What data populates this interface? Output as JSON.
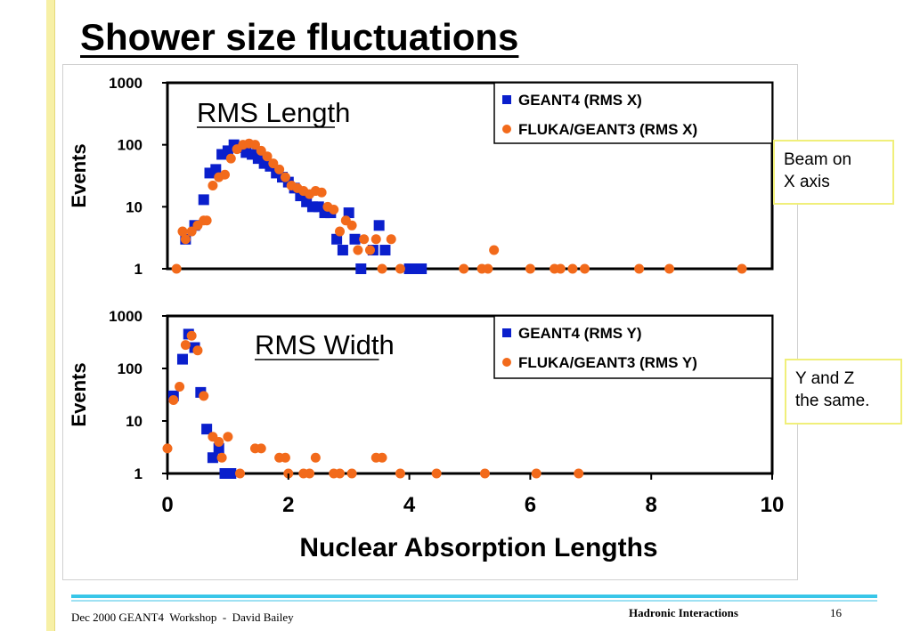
{
  "slide": {
    "title": "Shower size fluctuations",
    "footer_left": "Dec 2000 GEANT4  Workshop  -  David Bailey",
    "footer_center": "Hadronic Interactions",
    "page_number": "16"
  },
  "notes": {
    "beam_axis": "Beam on\nX axis",
    "same": "Y and Z\nthe same."
  },
  "colors": {
    "geant4": "#0a1fcc",
    "fluka": "#f26a1b",
    "note_border": "#f0ef7a",
    "footer_line": "#38c6e8"
  },
  "shared_xlabel": "Nuclear Absorption Lengths",
  "chart_data": [
    {
      "type": "scatter",
      "title": "RMS Length",
      "xlabel": "Nuclear Absorption Lengths",
      "ylabel": "Events",
      "xlim": [
        0,
        10
      ],
      "ylim": [
        1,
        1000
      ],
      "y_scale": "log",
      "y_ticks": [
        "1",
        "10",
        "100",
        "1000"
      ],
      "x_ticks": [
        "0",
        "2",
        "4",
        "6",
        "8",
        "10"
      ],
      "legend_position": "top-right",
      "series": [
        {
          "name": "GEANT4 (RMS X)",
          "marker": "square",
          "color": "#0a1fcc",
          "points": [
            [
              0.3,
              3
            ],
            [
              0.45,
              5
            ],
            [
              0.6,
              13
            ],
            [
              0.7,
              35
            ],
            [
              0.8,
              40
            ],
            [
              0.9,
              70
            ],
            [
              1.0,
              80
            ],
            [
              1.1,
              100
            ],
            [
              1.2,
              90
            ],
            [
              1.3,
              75
            ],
            [
              1.4,
              70
            ],
            [
              1.5,
              60
            ],
            [
              1.6,
              50
            ],
            [
              1.7,
              45
            ],
            [
              1.8,
              35
            ],
            [
              1.9,
              30
            ],
            [
              2.0,
              25
            ],
            [
              2.1,
              20
            ],
            [
              2.2,
              15
            ],
            [
              2.3,
              12
            ],
            [
              2.4,
              10
            ],
            [
              2.5,
              10
            ],
            [
              2.6,
              8
            ],
            [
              2.7,
              8
            ],
            [
              2.8,
              3
            ],
            [
              2.9,
              2
            ],
            [
              3.0,
              8
            ],
            [
              3.1,
              3
            ],
            [
              3.2,
              1
            ],
            [
              3.4,
              2
            ],
            [
              3.5,
              5
            ],
            [
              3.6,
              2
            ],
            [
              4.0,
              1
            ],
            [
              4.1,
              1
            ],
            [
              4.2,
              1
            ]
          ]
        },
        {
          "name": "FLUKA/GEANT3 (RMS X)",
          "marker": "circle",
          "color": "#f26a1b",
          "points": [
            [
              0.15,
              1
            ],
            [
              0.25,
              4
            ],
            [
              0.3,
              3
            ],
            [
              0.4,
              4
            ],
            [
              0.5,
              5
            ],
            [
              0.6,
              6
            ],
            [
              0.65,
              6
            ],
            [
              0.75,
              22
            ],
            [
              0.85,
              30
            ],
            [
              0.95,
              33
            ],
            [
              1.05,
              60
            ],
            [
              1.15,
              85
            ],
            [
              1.25,
              100
            ],
            [
              1.35,
              105
            ],
            [
              1.45,
              100
            ],
            [
              1.55,
              80
            ],
            [
              1.65,
              65
            ],
            [
              1.75,
              50
            ],
            [
              1.85,
              40
            ],
            [
              1.95,
              30
            ],
            [
              2.05,
              22
            ],
            [
              2.15,
              20
            ],
            [
              2.25,
              18
            ],
            [
              2.35,
              16
            ],
            [
              2.45,
              18
            ],
            [
              2.55,
              17
            ],
            [
              2.65,
              10
            ],
            [
              2.75,
              9
            ],
            [
              2.85,
              4
            ],
            [
              2.95,
              6
            ],
            [
              3.05,
              5
            ],
            [
              3.15,
              2
            ],
            [
              3.25,
              3
            ],
            [
              3.35,
              2
            ],
            [
              3.45,
              3
            ],
            [
              3.55,
              1
            ],
            [
              3.7,
              3
            ],
            [
              3.85,
              1
            ],
            [
              4.9,
              1
            ],
            [
              5.2,
              1
            ],
            [
              5.3,
              1
            ],
            [
              5.4,
              2
            ],
            [
              6.0,
              1
            ],
            [
              6.4,
              1
            ],
            [
              6.5,
              1
            ],
            [
              6.7,
              1
            ],
            [
              6.9,
              1
            ],
            [
              7.8,
              1
            ],
            [
              8.3,
              1
            ],
            [
              9.5,
              1
            ]
          ]
        }
      ]
    },
    {
      "type": "scatter",
      "title": "RMS Width",
      "xlabel": "Nuclear Absorption Lengths",
      "ylabel": "Events",
      "xlim": [
        0,
        10
      ],
      "ylim": [
        1,
        1000
      ],
      "y_scale": "log",
      "y_ticks": [
        "1",
        "10",
        "100",
        "1000"
      ],
      "x_ticks": [
        "0",
        "2",
        "4",
        "6",
        "8",
        "10"
      ],
      "legend_position": "top-right",
      "series": [
        {
          "name": "GEANT4 (RMS Y)",
          "marker": "square",
          "color": "#0a1fcc",
          "points": [
            [
              0.1,
              30
            ],
            [
              0.25,
              150
            ],
            [
              0.35,
              450
            ],
            [
              0.45,
              250
            ],
            [
              0.55,
              35
            ],
            [
              0.65,
              7
            ],
            [
              0.75,
              2
            ],
            [
              0.85,
              3
            ],
            [
              0.95,
              1
            ],
            [
              1.05,
              1
            ]
          ]
        },
        {
          "name": "FLUKA/GEANT3 (RMS Y)",
          "marker": "circle",
          "color": "#f26a1b",
          "points": [
            [
              0.0,
              3
            ],
            [
              0.1,
              25
            ],
            [
              0.2,
              45
            ],
            [
              0.3,
              280
            ],
            [
              0.4,
              420
            ],
            [
              0.5,
              220
            ],
            [
              0.6,
              30
            ],
            [
              0.75,
              5
            ],
            [
              0.85,
              4
            ],
            [
              0.9,
              2
            ],
            [
              1.0,
              5
            ],
            [
              1.2,
              1
            ],
            [
              1.45,
              3
            ],
            [
              1.55,
              3
            ],
            [
              1.85,
              2
            ],
            [
              1.95,
              2
            ],
            [
              2.0,
              1
            ],
            [
              2.25,
              1
            ],
            [
              2.35,
              1
            ],
            [
              2.45,
              2
            ],
            [
              2.75,
              1
            ],
            [
              2.85,
              1
            ],
            [
              3.05,
              1
            ],
            [
              3.45,
              2
            ],
            [
              3.55,
              2
            ],
            [
              3.85,
              1
            ],
            [
              4.45,
              1
            ],
            [
              5.25,
              1
            ],
            [
              6.1,
              1
            ],
            [
              6.8,
              1
            ]
          ]
        }
      ]
    }
  ]
}
